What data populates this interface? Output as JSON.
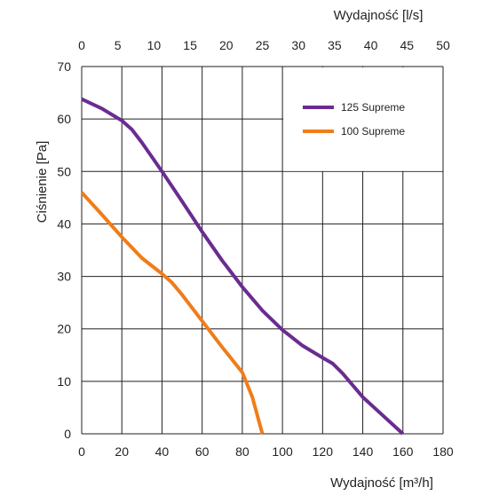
{
  "chart_data": {
    "type": "line",
    "title": "",
    "xlabel": "Wydajność [m³/h]",
    "x2label": "Wydajność [l/s]",
    "ylabel": "Ciśnienie [Pa]",
    "xlim": [
      0,
      180
    ],
    "x2lim": [
      0,
      50
    ],
    "ylim": [
      0,
      70
    ],
    "xticks": [
      "0",
      "20",
      "40",
      "60",
      "80",
      "100",
      "120",
      "140",
      "160",
      "180"
    ],
    "x2ticks": [
      "0",
      "5",
      "10",
      "15",
      "20",
      "25",
      "30",
      "35",
      "40",
      "45",
      "50"
    ],
    "yticks": [
      "0",
      "10",
      "20",
      "30",
      "40",
      "50",
      "60",
      "70"
    ],
    "grid": true,
    "legend_position": "top-right",
    "series": [
      {
        "name": "125 Supreme",
        "color": "#6a2c91",
        "x": [
          0,
          10,
          20,
          25,
          30,
          40,
          50,
          60,
          70,
          80,
          90,
          100,
          110,
          120,
          125,
          130,
          140,
          150,
          160
        ],
        "y": [
          63.8,
          62,
          59.7,
          58,
          55.5,
          50,
          44.3,
          38.5,
          33,
          28,
          23.5,
          19.8,
          16.8,
          14.5,
          13.4,
          11.5,
          7,
          3.5,
          0
        ]
      },
      {
        "name": "100 Supreme",
        "color": "#ef7d1a",
        "x": [
          0,
          10,
          20,
          30,
          40,
          45,
          50,
          60,
          70,
          80,
          85,
          90
        ],
        "y": [
          46,
          41.8,
          37.5,
          33.5,
          30.5,
          28.8,
          26.5,
          21.5,
          16.5,
          11.7,
          7,
          0
        ]
      }
    ]
  }
}
